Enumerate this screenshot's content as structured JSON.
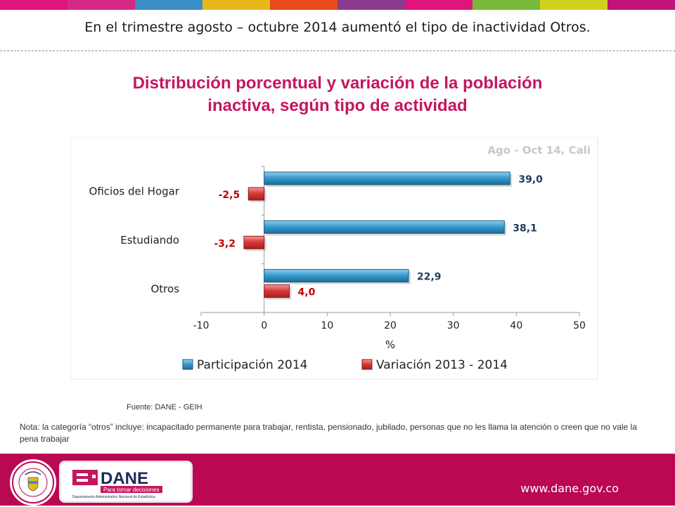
{
  "header": {
    "color_stripes": [
      "#e0157b",
      "#d42a87",
      "#3a8fc7",
      "#e8b81a",
      "#e94a1e",
      "#8a3b8f",
      "#e0157b",
      "#78b83a",
      "#cfd21d",
      "#c0147a"
    ],
    "headline": "En el trimestre agosto – octubre 2014 aumentó el tipo de inactividad Otros."
  },
  "title": {
    "line1": "Distribución porcentual  y variación de la población",
    "line2": "inactiva, según tipo de actividad"
  },
  "chart_data": {
    "type": "bar",
    "orientation": "horizontal",
    "subtitle": "Ago - Oct 14, Cali",
    "categories": [
      "Oficios del Hogar",
      "Estudiando",
      "Otros"
    ],
    "series": [
      {
        "name": "Participación 2014",
        "values": [
          39.0,
          38.1,
          22.9
        ],
        "labels": [
          "39,0",
          "38,1",
          "22,9"
        ],
        "color": "#2e8cbf"
      },
      {
        "name": "Variación 2013 - 2014",
        "values": [
          -2.5,
          -3.2,
          4.0
        ],
        "labels": [
          "-2,5",
          "-3,2",
          "4,0"
        ],
        "color": "#d83a3a"
      }
    ],
    "xlabel": "%",
    "xlim": [
      -10,
      50
    ],
    "xticks": [
      -10,
      0,
      10,
      20,
      30,
      40,
      50
    ],
    "legend_position": "bottom",
    "label_colors": {
      "positive_participation": "#1f3a5f",
      "variation": "#c00000"
    }
  },
  "notes": {
    "fuente": "Fuente: DANE - GEIH",
    "nota": "Nota: la categoría “otros” incluye: incapacitado permanente para trabajar, rentista, pensionado, jubilado, personas que no les llama la atención o creen que no vale la pena trabajar"
  },
  "footer": {
    "bg_color": "#bb0852",
    "dane_logo_text": "DANE",
    "dane_tagline": "Para tomar decisiones",
    "dane_subtitle": "Departamento Administrativo Nacional de Estadística",
    "seal_text": "REPÚBLICA DE COLOMBIA",
    "url": "www.dane.gov.co"
  }
}
